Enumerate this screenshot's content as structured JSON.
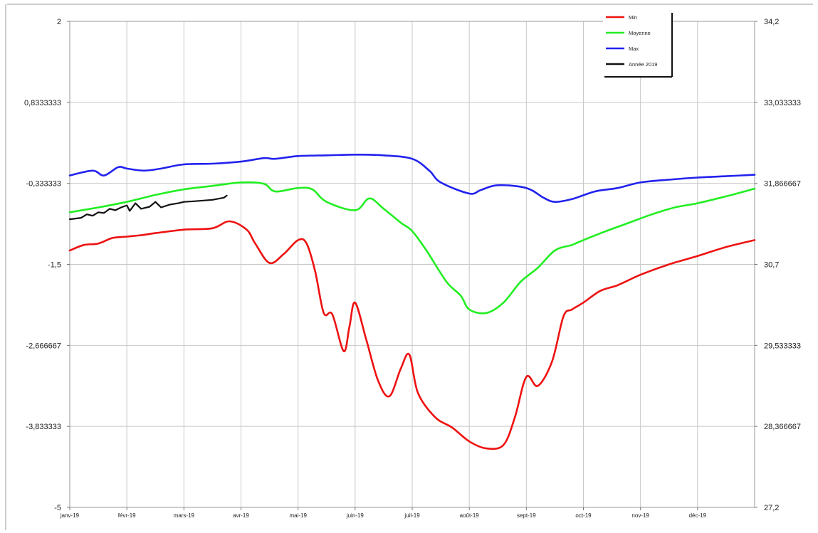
{
  "chart_data": {
    "type": "line",
    "x": [
      "janv-19",
      "févr-19",
      "mars-19",
      "avr-19",
      "mai-19",
      "juin-19",
      "juil-19",
      "août-19",
      "sept-19",
      "oct-19",
      "nov-19",
      "déc-19"
    ],
    "y_left_ticks": [
      "2",
      "0,8333333",
      "-0,333333",
      "-1,5",
      "-2,666667",
      "-3,833333",
      "-5"
    ],
    "y_right_ticks": [
      "34,2",
      "33,033333",
      "31,866667",
      "30,7",
      "29,533333",
      "28,366667",
      "27,2"
    ],
    "ylim_left": [
      -5,
      2
    ],
    "ylim_right": [
      27.2,
      34.2
    ],
    "grid": true,
    "legend_position": "top-right",
    "series": [
      {
        "name": "Min",
        "color": "#ee1111",
        "points": [
          [
            0,
            30.9
          ],
          [
            0.25,
            30.98
          ],
          [
            0.5,
            31.0
          ],
          [
            0.75,
            31.08
          ],
          [
            1.0,
            31.1
          ],
          [
            1.25,
            31.12
          ],
          [
            1.5,
            31.15
          ],
          [
            2.0,
            31.2
          ],
          [
            2.5,
            31.22
          ],
          [
            2.8,
            31.32
          ],
          [
            3.1,
            31.2
          ],
          [
            3.25,
            31.0
          ],
          [
            3.5,
            30.72
          ],
          [
            3.75,
            30.85
          ],
          [
            4.0,
            31.05
          ],
          [
            4.15,
            31.0
          ],
          [
            4.3,
            30.6
          ],
          [
            4.45,
            30.0
          ],
          [
            4.6,
            29.98
          ],
          [
            4.8,
            29.45
          ],
          [
            4.9,
            29.8
          ],
          [
            5.0,
            30.15
          ],
          [
            5.2,
            29.6
          ],
          [
            5.4,
            29.03
          ],
          [
            5.6,
            28.8
          ],
          [
            5.8,
            29.2
          ],
          [
            5.95,
            29.4
          ],
          [
            6.1,
            28.85
          ],
          [
            6.4,
            28.5
          ],
          [
            6.7,
            28.35
          ],
          [
            7.0,
            28.15
          ],
          [
            7.3,
            28.05
          ],
          [
            7.6,
            28.1
          ],
          [
            7.8,
            28.5
          ],
          [
            8.0,
            29.08
          ],
          [
            8.2,
            28.95
          ],
          [
            8.45,
            29.3
          ],
          [
            8.65,
            29.95
          ],
          [
            8.8,
            30.05
          ],
          [
            9.0,
            30.15
          ],
          [
            9.3,
            30.32
          ],
          [
            9.6,
            30.4
          ],
          [
            10.0,
            30.55
          ],
          [
            10.5,
            30.7
          ],
          [
            11.0,
            30.82
          ],
          [
            11.5,
            30.95
          ],
          [
            12.0,
            31.05
          ]
        ]
      },
      {
        "name": "Moyenne",
        "color": "#22ee22",
        "points": [
          [
            0,
            31.45
          ],
          [
            0.5,
            31.52
          ],
          [
            1.0,
            31.6
          ],
          [
            1.5,
            31.7
          ],
          [
            2.0,
            31.78
          ],
          [
            2.5,
            31.83
          ],
          [
            3.0,
            31.88
          ],
          [
            3.4,
            31.86
          ],
          [
            3.6,
            31.75
          ],
          [
            4.0,
            31.8
          ],
          [
            4.25,
            31.78
          ],
          [
            4.5,
            31.6
          ],
          [
            5.0,
            31.48
          ],
          [
            5.25,
            31.65
          ],
          [
            5.5,
            31.5
          ],
          [
            5.8,
            31.3
          ],
          [
            6.0,
            31.18
          ],
          [
            6.25,
            30.9
          ],
          [
            6.6,
            30.45
          ],
          [
            6.85,
            30.25
          ],
          [
            7.0,
            30.05
          ],
          [
            7.3,
            30.0
          ],
          [
            7.6,
            30.15
          ],
          [
            7.9,
            30.45
          ],
          [
            8.2,
            30.65
          ],
          [
            8.5,
            30.9
          ],
          [
            8.8,
            30.98
          ],
          [
            9.0,
            31.05
          ],
          [
            9.4,
            31.18
          ],
          [
            9.8,
            31.3
          ],
          [
            10.2,
            31.42
          ],
          [
            10.6,
            31.52
          ],
          [
            11.0,
            31.58
          ],
          [
            11.5,
            31.68
          ],
          [
            12.0,
            31.79
          ]
        ]
      },
      {
        "name": "Max",
        "color": "#2222ee",
        "points": [
          [
            0,
            31.98
          ],
          [
            0.4,
            32.05
          ],
          [
            0.6,
            31.98
          ],
          [
            0.85,
            32.1
          ],
          [
            1.0,
            32.08
          ],
          [
            1.3,
            32.05
          ],
          [
            1.6,
            32.08
          ],
          [
            2.0,
            32.14
          ],
          [
            2.5,
            32.15
          ],
          [
            3.0,
            32.18
          ],
          [
            3.4,
            32.23
          ],
          [
            3.6,
            32.22
          ],
          [
            4.0,
            32.26
          ],
          [
            4.5,
            32.27
          ],
          [
            5.0,
            32.28
          ],
          [
            5.5,
            32.27
          ],
          [
            6.0,
            32.22
          ],
          [
            6.3,
            32.05
          ],
          [
            6.5,
            31.88
          ],
          [
            7.0,
            31.72
          ],
          [
            7.2,
            31.77
          ],
          [
            7.5,
            31.84
          ],
          [
            8.0,
            31.8
          ],
          [
            8.3,
            31.66
          ],
          [
            8.5,
            31.6
          ],
          [
            8.8,
            31.64
          ],
          [
            9.2,
            31.75
          ],
          [
            9.6,
            31.8
          ],
          [
            10.0,
            31.88
          ],
          [
            10.5,
            31.92
          ],
          [
            11.0,
            31.95
          ],
          [
            11.5,
            31.97
          ],
          [
            12.0,
            31.99
          ]
        ]
      },
      {
        "name": "Année 2019",
        "color": "#111111",
        "points": [
          [
            0,
            31.35
          ],
          [
            0.2,
            31.37
          ],
          [
            0.3,
            31.42
          ],
          [
            0.4,
            31.4
          ],
          [
            0.5,
            31.45
          ],
          [
            0.6,
            31.44
          ],
          [
            0.7,
            31.5
          ],
          [
            0.8,
            31.48
          ],
          [
            0.9,
            31.52
          ],
          [
            1.0,
            31.55
          ],
          [
            1.05,
            31.47
          ],
          [
            1.15,
            31.58
          ],
          [
            1.25,
            31.5
          ],
          [
            1.4,
            31.53
          ],
          [
            1.5,
            31.6
          ],
          [
            1.6,
            31.52
          ],
          [
            1.75,
            31.56
          ],
          [
            1.9,
            31.58
          ],
          [
            2.0,
            31.6
          ],
          [
            2.2,
            31.61
          ],
          [
            2.5,
            31.63
          ],
          [
            2.7,
            31.66
          ],
          [
            2.75,
            31.69
          ]
        ]
      }
    ]
  }
}
